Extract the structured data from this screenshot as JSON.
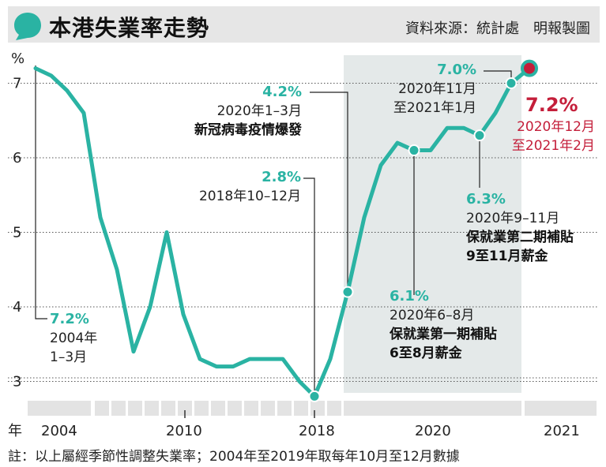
{
  "header": {
    "title": "本港失業率走勢",
    "source": "資料來源：統計處　明報製圖",
    "accent_color": "#2ab3a3",
    "icon": "speech-bubble-icon"
  },
  "footnote": "註：以上屬經季節性調整失業率；2004年至2019年取每年10月至12月數據",
  "chart_data": {
    "type": "line",
    "title": "本港失業率走勢",
    "xlabel": "年",
    "ylabel": "%",
    "ylim": [
      2.75,
      7.35
    ],
    "y_ticks": [
      3,
      4,
      5,
      6,
      7
    ],
    "x_ticks": [
      "2004",
      "2010",
      "2018",
      "2020",
      "2021"
    ],
    "grid": "horizontal dotted",
    "highlight_region": "2018年10–12月 to 2020年12月–2021年2月",
    "line_color": "#2ab3a3",
    "highlight_color": "#c41e3a",
    "series": [
      {
        "values": [
          7.2,
          7.1,
          6.9,
          6.6,
          5.2,
          4.5,
          3.4,
          4.0,
          5.0,
          3.9,
          3.3,
          3.2,
          3.2,
          3.3,
          3.3,
          3.3,
          3.0,
          2.8,
          3.3,
          4.2,
          5.2,
          5.9,
          6.2,
          6.1,
          6.1,
          6.4,
          6.4,
          6.3,
          6.6,
          7.0,
          7.2
        ]
      }
    ],
    "annotations": [
      {
        "value": "7.2%",
        "lines": [
          "2004年",
          "1–3月"
        ],
        "bold_lines": []
      },
      {
        "value": "2.8%",
        "lines": [
          "2018年10–12月"
        ],
        "bold_lines": []
      },
      {
        "value": "4.2%",
        "lines": [
          "2020年1–3月"
        ],
        "bold_lines": [
          "新冠病毒疫情爆發"
        ]
      },
      {
        "value": "6.1%",
        "lines": [
          "2020年6–8月"
        ],
        "bold_lines": [
          "保就業第一期補貼",
          "6至8月薪金"
        ]
      },
      {
        "value": "6.3%",
        "lines": [
          "2020年9–11月"
        ],
        "bold_lines": [
          "保就業第二期補貼",
          "9至11月薪金"
        ]
      },
      {
        "value": "7.0%",
        "lines": [
          "2020年11月",
          "至2021年1月"
        ],
        "bold_lines": []
      },
      {
        "value": "7.2%",
        "lines": [
          "2020年12月",
          "至2021年2月"
        ],
        "bold_lines": [],
        "highlight": true
      }
    ]
  }
}
